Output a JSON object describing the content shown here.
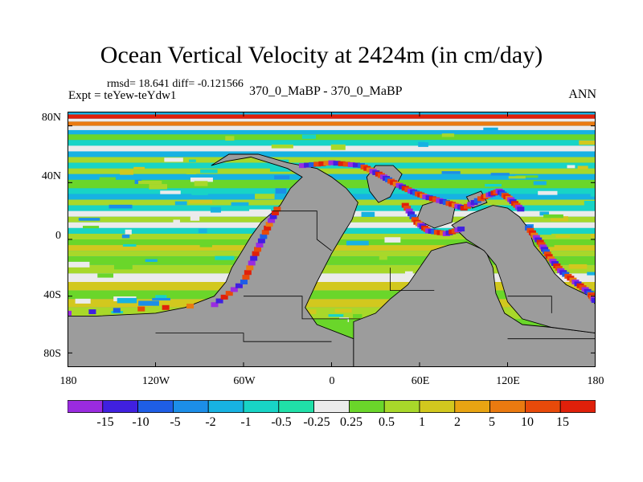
{
  "title": "Ocean Vertical Velocity at 2424m (in cm/day)",
  "stats": "rmsd= 18.641  diff= -0.121566",
  "expt": "Expt = teYew-teYdw1",
  "center_label": "370_0_MaBP - 370_0_MaBP",
  "season": "ANN",
  "colors": {
    "land": "#9c9c9c",
    "neutral": "#ebebeb"
  },
  "y_ticks": [
    "80N",
    "40N",
    "0",
    "40S",
    "80S"
  ],
  "x_ticks": [
    "180",
    "120W",
    "60W",
    "0",
    "60E",
    "120E",
    "180"
  ],
  "colorbar": {
    "labels": [
      "-15",
      "-10",
      "-5",
      "-2",
      "-1",
      "-0.5",
      "-0.25",
      "0.25",
      "0.5",
      "1",
      "2",
      "5",
      "10",
      "15"
    ],
    "colors": [
      "#9a2be0",
      "#4020e0",
      "#1e5ee6",
      "#1c8ee8",
      "#17b2e2",
      "#18d4c6",
      "#20e0a8",
      "#ebebeb",
      "#6ad62a",
      "#a8d82a",
      "#d2c81e",
      "#e8a412",
      "#ea7a10",
      "#e84a0a",
      "#e0200a"
    ]
  },
  "chart_data": {
    "type": "heatmap",
    "title": "Ocean Vertical Velocity at 2424m (in cm/day)",
    "variable": "Ocean vertical velocity",
    "units": "cm/day",
    "depth": "2424m",
    "x_range": [
      -180,
      180
    ],
    "y_range": [
      -90,
      90
    ],
    "contour_levels": [
      -15,
      -10,
      -5,
      -2,
      -1,
      -0.5,
      -0.25,
      0.25,
      0.5,
      1,
      2,
      5,
      10,
      15
    ],
    "rmsd": 18.641,
    "diff": -0.121566
  }
}
